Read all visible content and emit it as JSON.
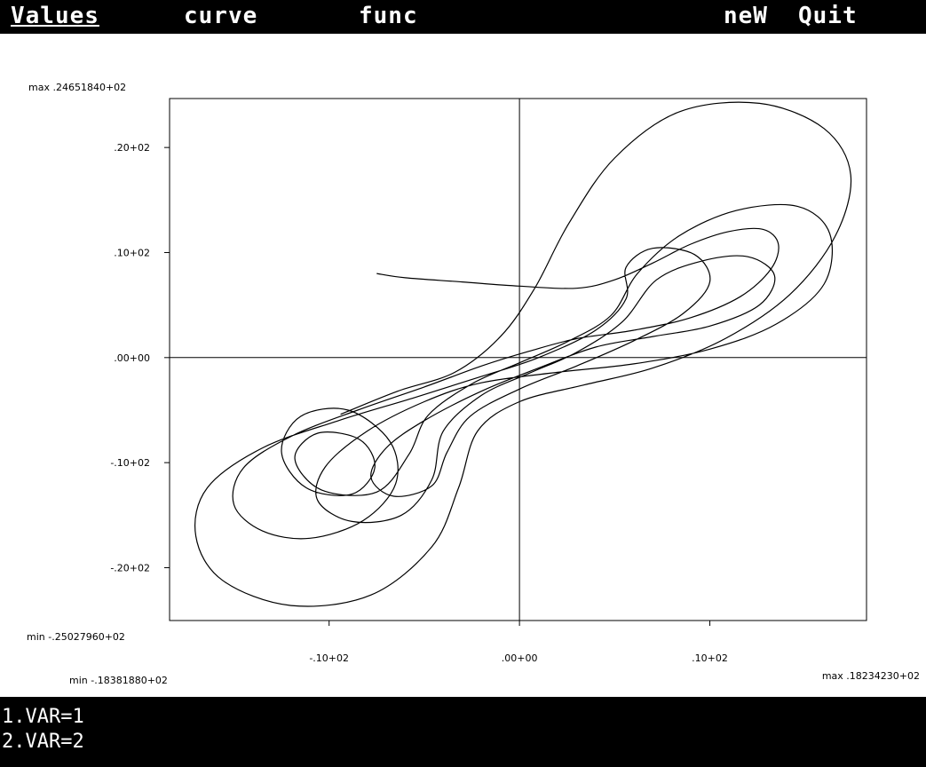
{
  "menu": {
    "items": [
      {
        "label": "Values",
        "active": true
      },
      {
        "label": "curve",
        "active": false
      },
      {
        "label": "func",
        "active": false
      },
      {
        "label": "neW",
        "active": false
      },
      {
        "label": "Quit",
        "active": false
      }
    ]
  },
  "status": {
    "lines": [
      "1.VAR=1",
      "2.VAR=2"
    ]
  },
  "chart_data": {
    "type": "line",
    "title": "",
    "xlabel": "",
    "ylabel": "",
    "xlim": [
      -18.38,
      18.23
    ],
    "ylim": [
      -25.03,
      24.66
    ],
    "x_ticks": [
      -10,
      0,
      10
    ],
    "y_ticks": [
      20,
      10,
      0,
      -10,
      -20
    ],
    "x_tick_labels": [
      "-.10+02",
      ".00+00",
      ".10+02"
    ],
    "y_tick_labels": [
      ".20+02",
      ".10+02",
      ".00+00",
      "-.10+02",
      "-.20+02"
    ],
    "y_max_label": "max .24651840+02",
    "y_min_label": "min -.25027960+02",
    "x_min_label": "min -.18381880+02",
    "x_max_label": "max .18234230+02",
    "grid": false,
    "axes_through_origin": true,
    "series": [
      {
        "style": "lorenz attractor trajectory (x vs y)",
        "color": "#000000",
        "points": [
          [
            -7.5,
            8.0
          ],
          [
            -6.0,
            7.6
          ],
          [
            -3.0,
            7.2
          ],
          [
            0.0,
            6.8
          ],
          [
            3.0,
            6.6
          ],
          [
            5.0,
            7.4
          ],
          [
            7.0,
            9.0
          ],
          [
            9.0,
            10.8
          ],
          [
            11.0,
            12.0
          ],
          [
            12.8,
            12.2
          ],
          [
            13.6,
            10.8
          ],
          [
            13.2,
            8.4
          ],
          [
            11.6,
            5.8
          ],
          [
            9.0,
            3.8
          ],
          [
            6.0,
            2.6
          ],
          [
            3.0,
            1.8
          ],
          [
            0.5,
            0.6
          ],
          [
            -2.0,
            -0.8
          ],
          [
            -5.0,
            -2.8
          ],
          [
            -8.5,
            -5.0
          ],
          [
            -12.0,
            -7.5
          ],
          [
            -14.5,
            -10.5
          ],
          [
            -15.0,
            -14.0
          ],
          [
            -13.5,
            -16.5
          ],
          [
            -11.0,
            -17.2
          ],
          [
            -8.2,
            -15.5
          ],
          [
            -6.5,
            -12.0
          ],
          [
            -6.8,
            -8.0
          ],
          [
            -9.0,
            -5.0
          ],
          [
            -11.5,
            -5.6
          ],
          [
            -12.5,
            -9.0
          ],
          [
            -11.2,
            -12.4
          ],
          [
            -8.8,
            -13.0
          ],
          [
            -7.6,
            -10.5
          ],
          [
            -8.4,
            -7.8
          ],
          [
            -10.6,
            -7.2
          ],
          [
            -11.8,
            -9.6
          ],
          [
            -10.4,
            -12.6
          ],
          [
            -7.5,
            -12.8
          ],
          [
            -5.8,
            -9.2
          ],
          [
            -4.8,
            -5.5
          ],
          [
            -2.5,
            -2.5
          ],
          [
            0.0,
            -0.5
          ],
          [
            2.5,
            1.5
          ],
          [
            4.8,
            4.0
          ],
          [
            6.2,
            8.0
          ],
          [
            8.4,
            11.6
          ],
          [
            11.4,
            14.0
          ],
          [
            14.6,
            14.4
          ],
          [
            16.3,
            11.8
          ],
          [
            16.0,
            7.0
          ],
          [
            13.5,
            3.2
          ],
          [
            10.0,
            0.8
          ],
          [
            6.0,
            -0.6
          ],
          [
            2.0,
            -1.4
          ],
          [
            -2.0,
            -2.4
          ],
          [
            -5.0,
            -4.2
          ],
          [
            -8.0,
            -7.0
          ],
          [
            -10.2,
            -10.4
          ],
          [
            -10.6,
            -13.6
          ],
          [
            -8.8,
            -15.6
          ],
          [
            -6.2,
            -15.0
          ],
          [
            -4.6,
            -11.6
          ],
          [
            -4.0,
            -7.0
          ],
          [
            -2.0,
            -3.6
          ],
          [
            0.5,
            -1.5
          ],
          [
            3.0,
            0.5
          ],
          [
            5.4,
            3.4
          ],
          [
            7.2,
            7.4
          ],
          [
            9.6,
            9.2
          ],
          [
            12.0,
            9.6
          ],
          [
            13.4,
            7.8
          ],
          [
            12.6,
            5.0
          ],
          [
            10.0,
            3.0
          ],
          [
            7.0,
            2.0
          ],
          [
            4.0,
            1.0
          ],
          [
            1.0,
            -1.0
          ],
          [
            -2.0,
            -3.2
          ],
          [
            -5.0,
            -6.0
          ],
          [
            -7.0,
            -8.6
          ],
          [
            -7.8,
            -11.4
          ],
          [
            -6.6,
            -13.2
          ],
          [
            -4.6,
            -12.2
          ],
          [
            -3.8,
            -9.0
          ],
          [
            -2.6,
            -5.6
          ],
          [
            0.0,
            -3.0
          ],
          [
            3.0,
            -0.8
          ],
          [
            6.0,
            1.6
          ],
          [
            8.6,
            4.2
          ],
          [
            10.0,
            7.2
          ],
          [
            9.2,
            9.8
          ],
          [
            7.0,
            10.4
          ],
          [
            5.6,
            8.6
          ],
          [
            5.6,
            5.6
          ],
          [
            4.0,
            2.6
          ],
          [
            1.0,
            0.0
          ],
          [
            -2.0,
            -1.8
          ],
          [
            -5.5,
            -3.8
          ],
          [
            -9.5,
            -6.0
          ],
          [
            -13.5,
            -8.6
          ],
          [
            -16.4,
            -12.4
          ],
          [
            -17.0,
            -17.0
          ],
          [
            -15.6,
            -21.2
          ],
          [
            -12.0,
            -23.6
          ],
          [
            -7.8,
            -22.6
          ],
          [
            -4.6,
            -18.0
          ],
          [
            -3.2,
            -12.4
          ],
          [
            -2.2,
            -7.0
          ],
          [
            0.0,
            -4.2
          ],
          [
            3.4,
            -2.6
          ],
          [
            7.0,
            -1.0
          ],
          [
            10.8,
            1.8
          ],
          [
            14.2,
            6.0
          ],
          [
            16.6,
            11.6
          ],
          [
            17.4,
            17.4
          ],
          [
            16.0,
            21.8
          ],
          [
            12.6,
            24.2
          ],
          [
            8.4,
            23.4
          ],
          [
            5.0,
            19.0
          ],
          [
            2.6,
            12.8
          ],
          [
            0.8,
            6.6
          ],
          [
            -1.0,
            2.0
          ],
          [
            -3.4,
            -1.4
          ],
          [
            -6.4,
            -3.2
          ],
          [
            -9.4,
            -5.4
          ]
        ]
      }
    ]
  }
}
